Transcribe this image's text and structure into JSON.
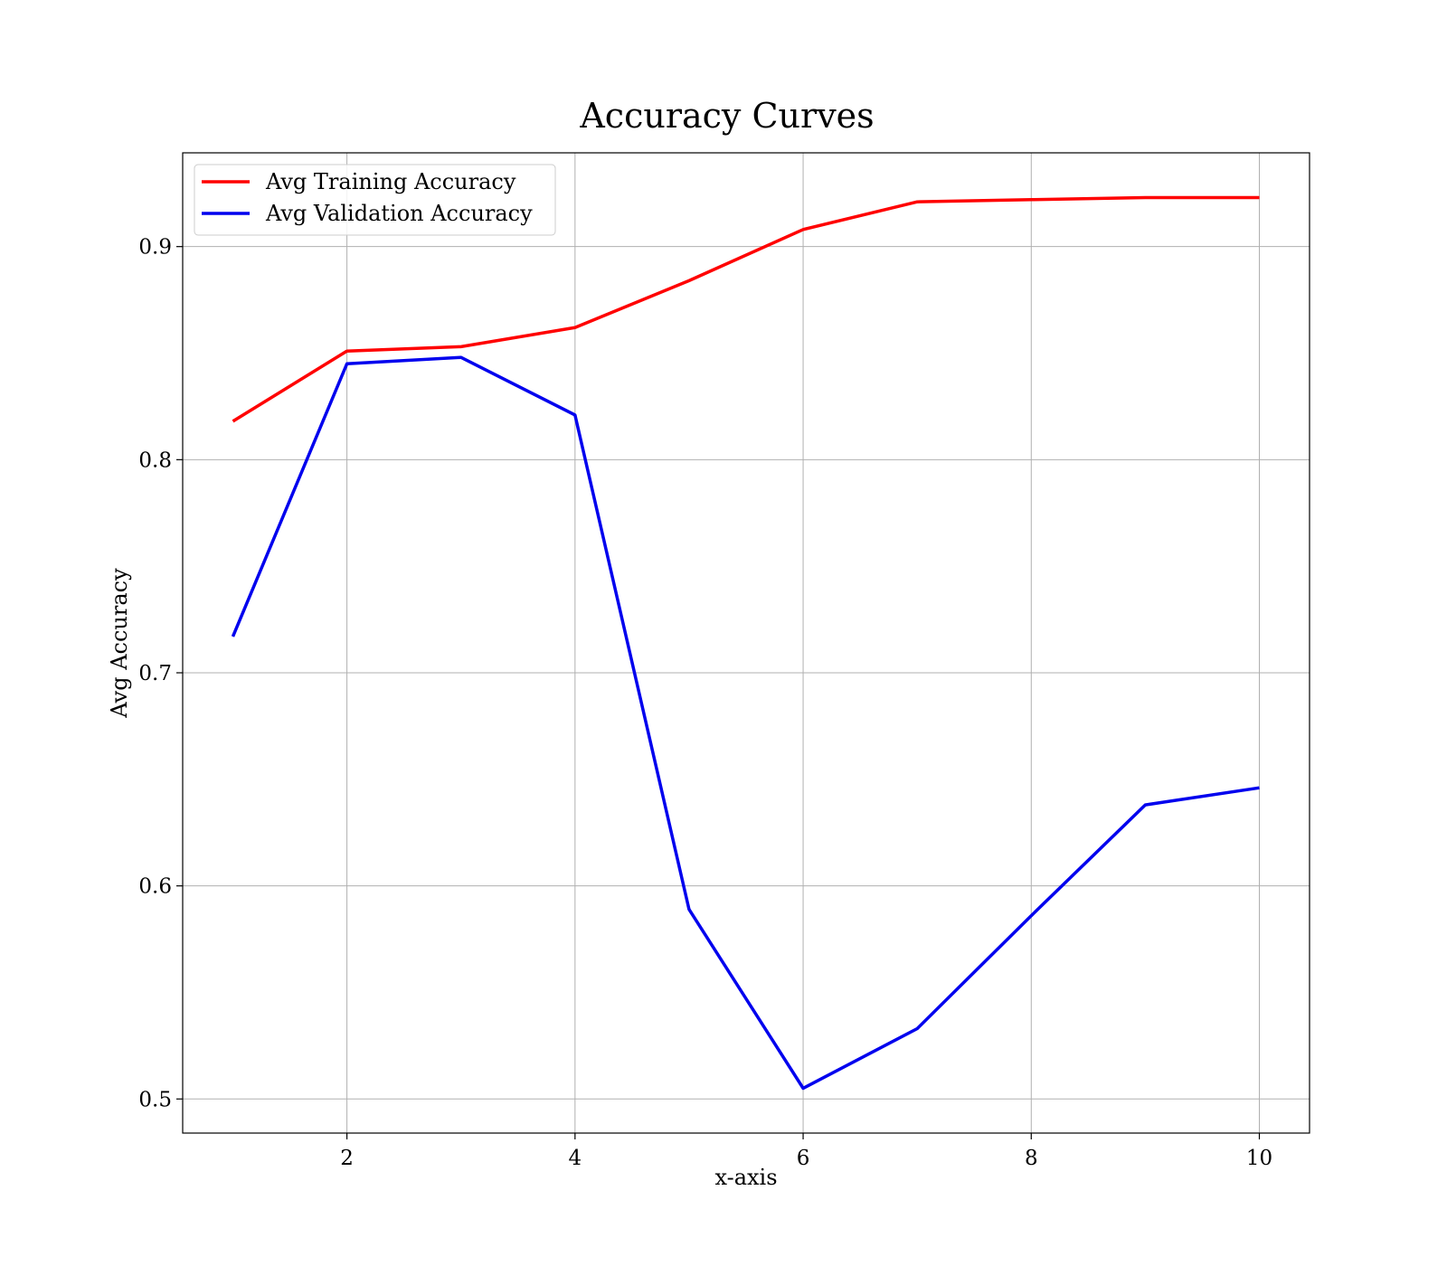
{
  "chart_data": {
    "type": "line",
    "title": "Accuracy Curves",
    "xlabel": "x-axis",
    "ylabel": "Avg Accuracy",
    "x": [
      1,
      2,
      3,
      4,
      5,
      6,
      7,
      8,
      9,
      10
    ],
    "xlim": [
      0.56,
      10.44
    ],
    "ylim": [
      0.484,
      0.944
    ],
    "xticks": [
      2,
      4,
      6,
      8,
      10
    ],
    "yticks": [
      0.5,
      0.6,
      0.7,
      0.8,
      0.9
    ],
    "xtick_labels": [
      "2",
      "4",
      "6",
      "8",
      "10"
    ],
    "ytick_labels": [
      "0.5",
      "0.6",
      "0.7",
      "0.8",
      "0.9"
    ],
    "grid": true,
    "legend_position": "top-left",
    "series": [
      {
        "name": "Avg Training Accuracy",
        "color": "#ff0000",
        "values": [
          0.818,
          0.851,
          0.853,
          0.862,
          0.884,
          0.908,
          0.921,
          0.922,
          0.923,
          0.923
        ]
      },
      {
        "name": "Avg Validation Accuracy",
        "color": "#0000ee",
        "values": [
          0.717,
          0.845,
          0.848,
          0.821,
          0.589,
          0.505,
          0.533,
          0.586,
          0.638,
          0.646
        ]
      }
    ]
  }
}
